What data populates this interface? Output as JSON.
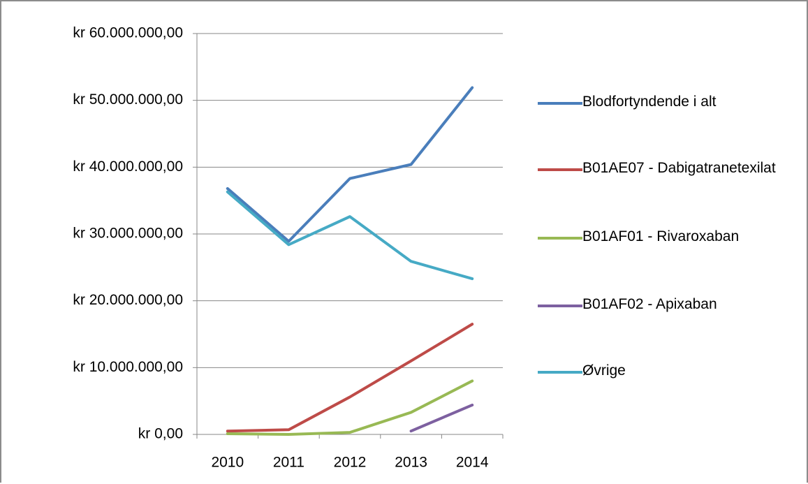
{
  "chart_data": {
    "type": "line",
    "categories": [
      "2010",
      "2011",
      "2012",
      "2013",
      "2014"
    ],
    "series": [
      {
        "name": "Blodfortyndende i alt",
        "color": "#4a7ebb",
        "values": [
          36800000,
          28900000,
          38300000,
          40400000,
          51900000
        ]
      },
      {
        "name": "B01AE07 - Dabigatranetexilat",
        "color": "#be4b48",
        "values": [
          500000,
          700000,
          5600000,
          11000000,
          16500000
        ]
      },
      {
        "name": "B01AF01 - Rivaroxaban",
        "color": "#98b954",
        "values": [
          100000,
          0,
          300000,
          3300000,
          8000000
        ]
      },
      {
        "name": "B01AF02 - Apixaban",
        "color": "#7d60a0",
        "values": [
          null,
          null,
          null,
          500000,
          4400000
        ]
      },
      {
        "name": "Øvrige",
        "color": "#46aac5",
        "values": [
          36300000,
          28400000,
          32600000,
          25900000,
          23300000
        ]
      }
    ],
    "ylim": [
      0,
      60000000
    ],
    "yticks": [
      {
        "value": 0,
        "label": "kr 0,00"
      },
      {
        "value": 10000000,
        "label": "kr 10.000.000,00"
      },
      {
        "value": 20000000,
        "label": "kr 20.000.000,00"
      },
      {
        "value": 30000000,
        "label": "kr 30.000.000,00"
      },
      {
        "value": 40000000,
        "label": "kr 40.000.000,00"
      },
      {
        "value": 50000000,
        "label": "kr 50.000.000,00"
      },
      {
        "value": 60000000,
        "label": "kr 60.000.000,00"
      }
    ],
    "grid": true,
    "legend": "right"
  }
}
